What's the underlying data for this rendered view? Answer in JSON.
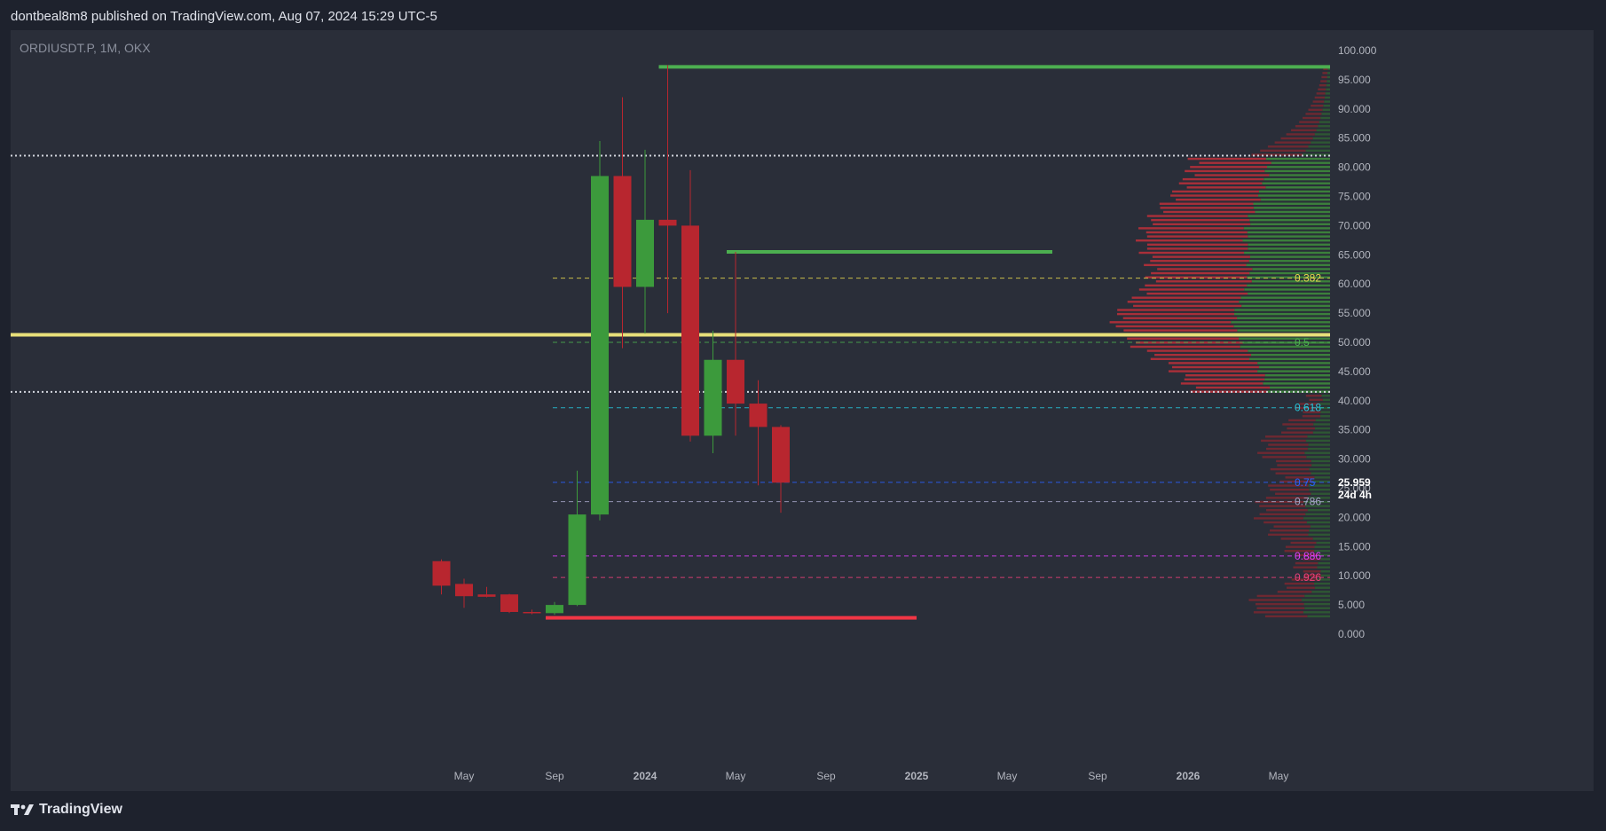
{
  "header": {
    "published_text": "dontbeal8m8 published on TradingView.com, Aug 07, 2024 15:29 UTC-5"
  },
  "chart_header": {
    "symbol_text": "ORDIUSDT.P, 1M, OKX"
  },
  "footer": {
    "brand": "TradingView"
  },
  "colors": {
    "bg": "#2a2e39",
    "frame": "#1e222d",
    "up": "#3c9a3c",
    "down": "#b8262f",
    "axis_text": "#b2b5be",
    "dotted_white": "#d1d4dc",
    "yellow": "#e8e07a"
  },
  "chart_data": {
    "type": "candlestick",
    "ylim": [
      0,
      100
    ],
    "y_ticks": [
      "100.000",
      "95.000",
      "90.000",
      "85.000",
      "80.000",
      "75.000",
      "70.000",
      "65.000",
      "60.000",
      "55.000",
      "50.000",
      "45.000",
      "40.000",
      "35.000",
      "30.000",
      "25.000",
      "20.000",
      "15.000",
      "10.000",
      "5.000",
      "0.000"
    ],
    "x_ticks": [
      "May",
      "Sep",
      "2024",
      "May",
      "Sep",
      "2025",
      "May",
      "Sep",
      "2026",
      "May"
    ],
    "candles": [
      {
        "month": "2023-04",
        "open": 12.5,
        "high": 12.8,
        "low": 6.8,
        "close": 8.3
      },
      {
        "month": "2023-05",
        "open": 8.6,
        "high": 9.5,
        "low": 4.5,
        "close": 6.5
      },
      {
        "month": "2023-06",
        "open": 6.8,
        "high": 8.1,
        "low": 6.3,
        "close": 6.4
      },
      {
        "month": "2023-07",
        "open": 6.8,
        "high": 6.9,
        "low": 3.6,
        "close": 3.8
      },
      {
        "month": "2023-08",
        "open": 3.8,
        "high": 4.2,
        "low": 3.4,
        "close": 3.7
      },
      {
        "month": "2023-09",
        "open": 3.6,
        "high": 5.5,
        "low": 3.3,
        "close": 5.0
      },
      {
        "month": "2023-10",
        "open": 5.0,
        "high": 28.0,
        "low": 4.8,
        "close": 20.5
      },
      {
        "month": "2023-11",
        "open": 20.5,
        "high": 84.5,
        "low": 19.5,
        "close": 78.5
      },
      {
        "month": "2023-12",
        "open": 78.5,
        "high": 92.0,
        "low": 49.0,
        "close": 59.5
      },
      {
        "month": "2024-01",
        "open": 59.5,
        "high": 83.0,
        "low": 51.5,
        "close": 71.0
      },
      {
        "month": "2024-02",
        "open": 71.0,
        "high": 97.5,
        "low": 55.0,
        "close": 70.0
      },
      {
        "month": "2024-03",
        "open": 70.0,
        "high": 79.5,
        "low": 33.0,
        "close": 34.0
      },
      {
        "month": "2024-04",
        "open": 34.0,
        "high": 52.0,
        "low": 31.0,
        "close": 47.0
      },
      {
        "month": "2024-05",
        "open": 47.0,
        "high": 65.5,
        "low": 34.0,
        "close": 39.5
      },
      {
        "month": "2024-06",
        "open": 39.5,
        "high": 43.5,
        "low": 25.5,
        "close": 35.5
      },
      {
        "month": "2024-07",
        "open": 35.5,
        "high": 35.8,
        "low": 20.8,
        "close": 25.959
      }
    ],
    "horizontal_lines": [
      {
        "price": 97.2,
        "style": "solid",
        "color": "#4caf50",
        "from": "2024-02",
        "to": "end"
      },
      {
        "price": 65.5,
        "style": "solid",
        "color": "#4caf50",
        "from": "2024-05",
        "to": "2025-07"
      },
      {
        "price": 2.8,
        "style": "solid",
        "color": "#f23645",
        "from": "2023-09",
        "to": "2025-01"
      },
      {
        "price": 51.3,
        "style": "solid",
        "color": "#e8e07a",
        "from": "start",
        "to": "end"
      },
      {
        "price": 82.0,
        "style": "dotted",
        "color": "#d1d4dc",
        "from": "start",
        "to": "end"
      },
      {
        "price": 41.5,
        "style": "dotted",
        "color": "#d1d4dc",
        "from": "start",
        "to": "end"
      }
    ],
    "fib_levels": [
      {
        "label": "0.382",
        "price": 61.0,
        "color": "#e6d84e"
      },
      {
        "label": "0.5",
        "price": 50.0,
        "color": "#4caf50"
      },
      {
        "label": "0.618",
        "price": 38.8,
        "color": "#26c6da"
      },
      {
        "label": "0.75",
        "price": 26.0,
        "color": "#2962ff"
      },
      {
        "label": "0.786",
        "price": 22.7,
        "color": "#a6a6c8"
      },
      {
        "label": "0.886",
        "price": 13.4,
        "color": "#e040fb"
      },
      {
        "label": "0.926",
        "price": 9.7,
        "color": "#ec407a"
      }
    ],
    "last_price": {
      "value": "25.959",
      "countdown": "24d 4h"
    }
  }
}
